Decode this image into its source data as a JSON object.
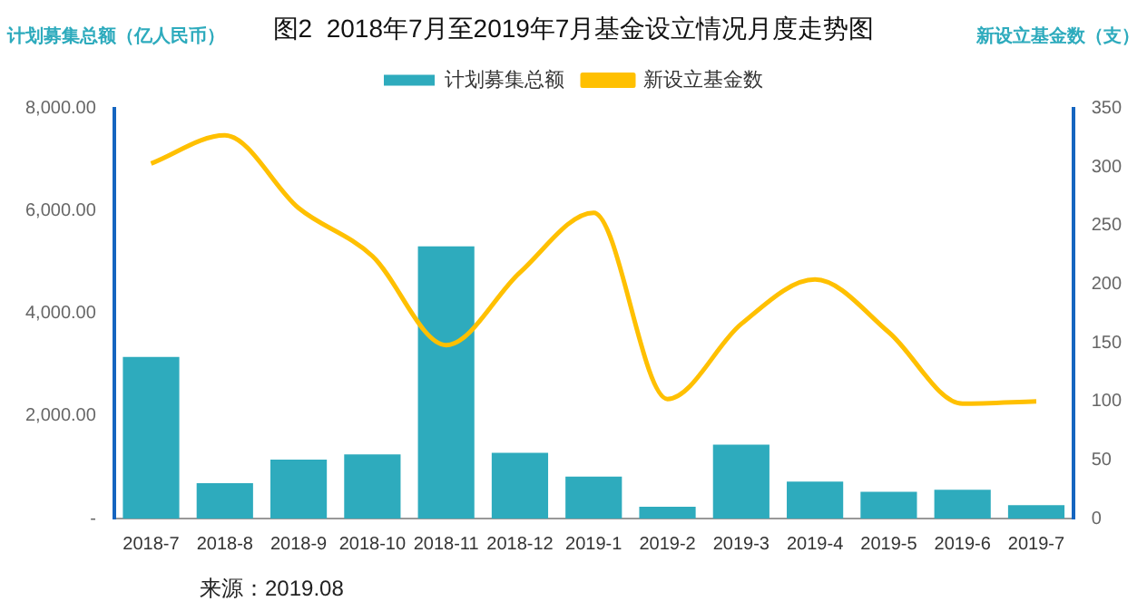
{
  "chart_data": {
    "type": "bar",
    "title": "图2  2018年7月至2019年7月基金设立情况月度走势图",
    "ylabel": "计划募集总额（亿人民币）",
    "y2label": "新设立基金数（支）",
    "categories": [
      "2018-7",
      "2018-8",
      "2018-9",
      "2018-10",
      "2018-11",
      "2018-12",
      "2019-1",
      "2019-2",
      "2019-3",
      "2019-4",
      "2019-5",
      "2019-6",
      "2019-7"
    ],
    "series": [
      {
        "name": "计划募集总额",
        "color": "#2eabbd",
        "values": [
          3150,
          690,
          1150,
          1250,
          5310,
          1280,
          820,
          230,
          1440,
          720,
          520,
          560,
          260
        ]
      },
      {
        "name": "新设立基金数",
        "type": "line",
        "axis": "y2",
        "color": "#ffc000",
        "marker": "none",
        "values": [
          303,
          327,
          265,
          224,
          148,
          210,
          261,
          102,
          166,
          204,
          159,
          98,
          100
        ]
      }
    ],
    "ylim": [
      0,
      8000
    ],
    "yticks": [
      {
        "value": 0,
        "label": "-"
      },
      {
        "value": 2000,
        "label": "2,000.00"
      },
      {
        "value": 4000,
        "label": "4,000.00"
      },
      {
        "value": 6000,
        "label": "6,000.00"
      },
      {
        "value": 8000,
        "label": "8,000.00"
      }
    ],
    "y2lim": [
      0,
      350
    ],
    "y2ticks": [
      0,
      50,
      100,
      150,
      200,
      250,
      300,
      350
    ],
    "grid": false,
    "legend": "top",
    "annotations": [
      "来源：2019.08"
    ]
  }
}
